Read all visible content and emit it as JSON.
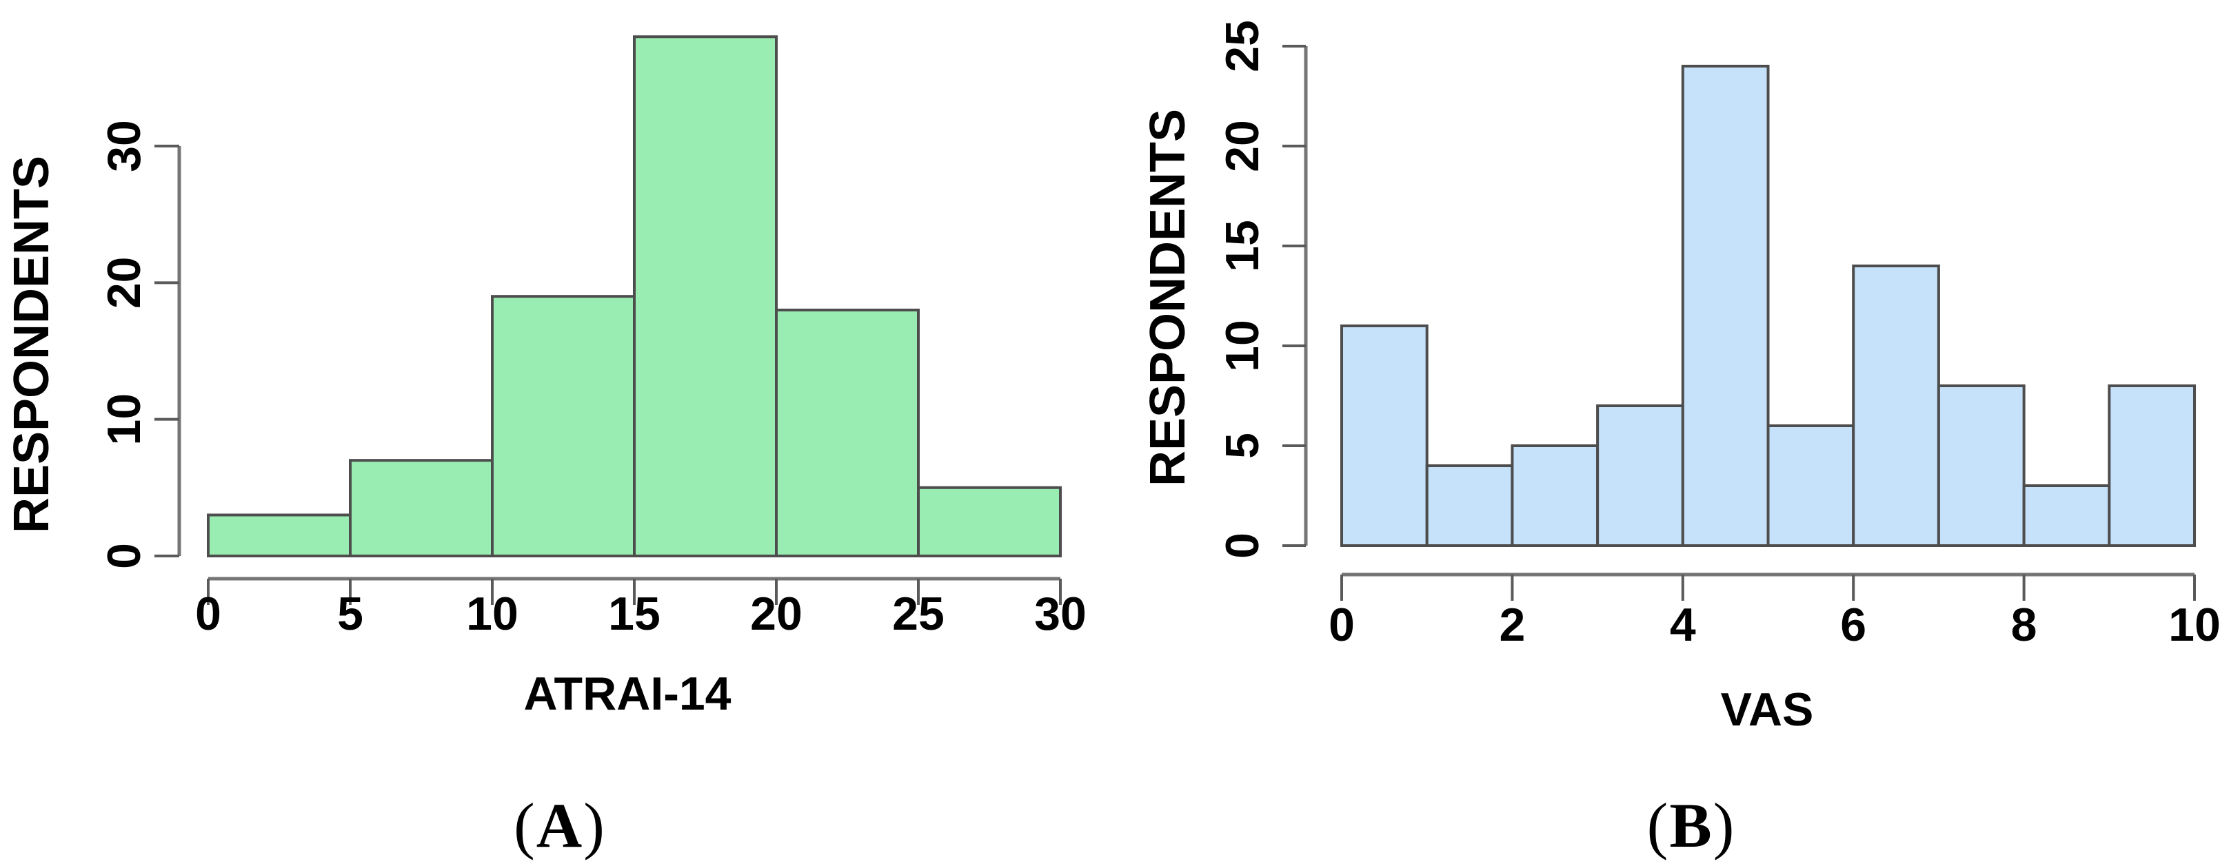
{
  "figure": {
    "background": "#FFFFFF",
    "panels": [
      {
        "label": "(A)"
      },
      {
        "label": "(B)"
      }
    ]
  },
  "chart_data": [
    {
      "type": "bar",
      "chart_kind": "histogram",
      "title": "",
      "xlabel": "ATRAI-14",
      "ylabel": "RESPONDENTS",
      "bin_edges": [
        0,
        5,
        10,
        15,
        20,
        25,
        30
      ],
      "values": [
        3,
        7,
        19,
        38,
        18,
        5
      ],
      "x_ticks": [
        0,
        5,
        10,
        15,
        20,
        25,
        30
      ],
      "y_ticks": [
        0,
        10,
        20,
        30
      ],
      "xlim": [
        0,
        30
      ],
      "ylim": [
        0,
        38
      ],
      "grid": false,
      "legend": null,
      "bar_fill": "#9AEDB2",
      "bar_border": "#4D4D4D",
      "axis_color": "#757575",
      "tick_color": "#5A5A5A",
      "text_color": "#000000",
      "panel_label": "(A)"
    },
    {
      "type": "bar",
      "chart_kind": "histogram",
      "title": "",
      "xlabel": "VAS",
      "ylabel": "RESPONDENTS",
      "bin_edges": [
        0,
        1,
        2,
        3,
        4,
        5,
        6,
        7,
        8,
        9,
        10
      ],
      "values": [
        11,
        4,
        5,
        7,
        24,
        6,
        14,
        8,
        3,
        8
      ],
      "x_ticks": [
        0,
        2,
        4,
        6,
        8,
        10
      ],
      "y_ticks": [
        0,
        5,
        10,
        15,
        20,
        25
      ],
      "xlim": [
        0,
        10
      ],
      "ylim": [
        0,
        24
      ],
      "grid": false,
      "legend": null,
      "bar_fill": "#C5E2FA",
      "bar_border": "#4D4D4D",
      "axis_color": "#757575",
      "tick_color": "#5A5A5A",
      "text_color": "#000000",
      "panel_label": "(B)"
    }
  ]
}
